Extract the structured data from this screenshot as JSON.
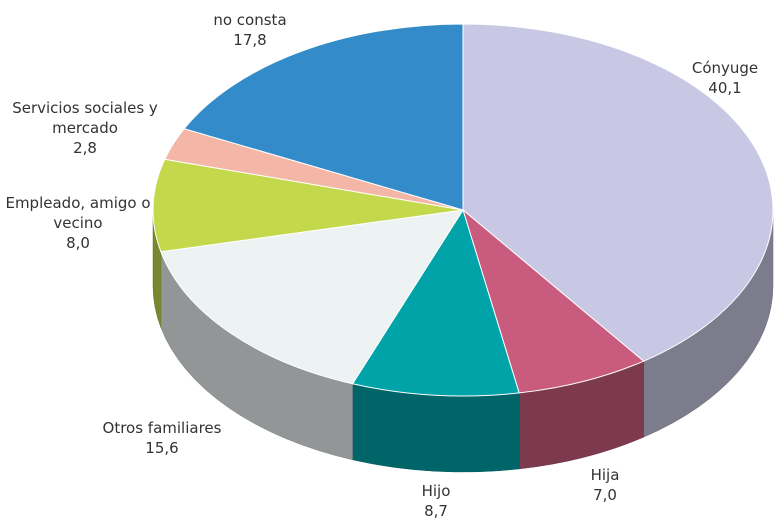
{
  "chart_data": {
    "type": "pie",
    "categories": [
      "Cónyuge",
      "Hija",
      "Hijo",
      "Otros familiares",
      "Empleado, amigo o vecino",
      "Servicios sociales y mercado",
      "no consta"
    ],
    "values": [
      40.1,
      7.0,
      8.7,
      15.6,
      8.0,
      2.8,
      17.8
    ],
    "value_labels": [
      "40,1",
      "7,0",
      "8,7",
      "15,6",
      "8,0",
      "2,8",
      "17,8"
    ],
    "colors": [
      "#c8c8e4",
      "#c95c7e",
      "#00a3a8",
      "#edf2f2",
      "#c3d94b",
      "#f4b6a6",
      "#338cc9"
    ]
  }
}
